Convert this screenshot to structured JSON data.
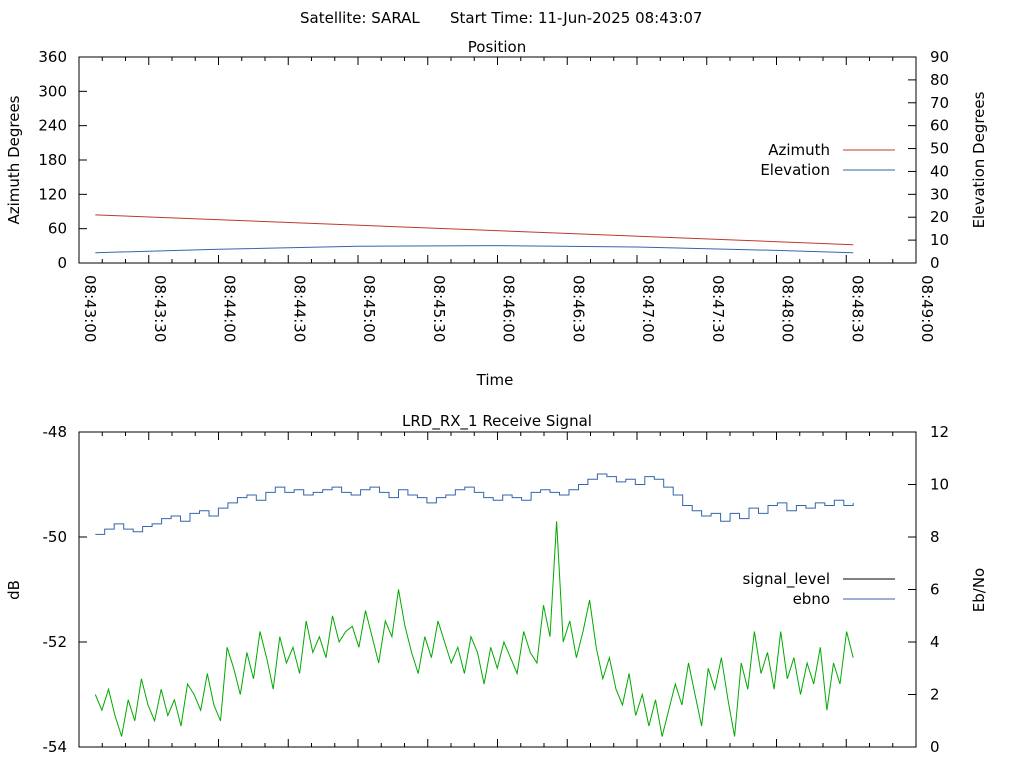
{
  "header": {
    "satellite_label": "Satellite: SARAL",
    "start_time_label": "Start Time: 11-Jun-2025 08:43:07"
  },
  "chart_data": [
    {
      "type": "line",
      "title": "Position",
      "xlabel": "Time",
      "ylabel": "Azimuth Degrees",
      "y2label": "Elevation Degrees",
      "x_ticks": [
        "08:43:00",
        "08:43:30",
        "08:44:00",
        "08:44:30",
        "08:45:00",
        "08:45:30",
        "08:46:00",
        "08:46:30",
        "08:47:00",
        "08:47:30",
        "08:48:00",
        "08:48:30",
        "08:49:00"
      ],
      "xlim": [
        "08:43:00",
        "08:49:00"
      ],
      "ylim": [
        0,
        360
      ],
      "y_ticks": [
        0,
        60,
        120,
        180,
        240,
        300,
        360
      ],
      "y2lim": [
        0,
        90
      ],
      "y2_ticks": [
        0,
        10,
        20,
        30,
        40,
        50,
        60,
        70,
        80,
        90
      ],
      "legend_position": "right",
      "series": [
        {
          "name": "Azimuth",
          "axis": "y",
          "color": "#c0392b",
          "x": [
            "08:43:07",
            "08:48:33"
          ],
          "values": [
            84,
            32
          ]
        },
        {
          "name": "Elevation",
          "axis": "y2",
          "color": "#3366aa",
          "x": [
            "08:43:07",
            "08:44:00",
            "08:45:00",
            "08:46:00",
            "08:47:00",
            "08:48:00",
            "08:48:33"
          ],
          "values": [
            4.5,
            6,
            7.3,
            7.6,
            7,
            5.5,
            4.5
          ]
        }
      ]
    },
    {
      "type": "line",
      "title": "LRD_RX_1 Receive Signal",
      "xlabel": "",
      "ylabel": "dB",
      "y2label": "Eb/No",
      "ylim": [
        -54,
        -48
      ],
      "y_ticks": [
        -54,
        -52,
        -50,
        -48
      ],
      "y2lim": [
        0,
        12
      ],
      "y2_ticks": [
        0,
        2,
        4,
        6,
        8,
        10,
        12
      ],
      "xlim": [
        "08:43:00",
        "08:49:00"
      ],
      "legend_position": "right",
      "series": [
        {
          "name": "signal_level",
          "axis": "y",
          "color": "#000000",
          "values": []
        },
        {
          "name": "ebno",
          "axis": "y2",
          "color": "#3366aa",
          "values": [
            8.1,
            8.3,
            8.5,
            8.3,
            8.2,
            8.4,
            8.5,
            8.7,
            8.8,
            8.6,
            8.9,
            9.0,
            8.8,
            9.1,
            9.3,
            9.5,
            9.6,
            9.4,
            9.7,
            9.9,
            9.7,
            9.8,
            9.6,
            9.7,
            9.8,
            9.9,
            9.7,
            9.6,
            9.8,
            9.9,
            9.7,
            9.5,
            9.8,
            9.6,
            9.5,
            9.3,
            9.5,
            9.6,
            9.8,
            9.9,
            9.7,
            9.5,
            9.4,
            9.6,
            9.5,
            9.4,
            9.7,
            9.8,
            9.7,
            9.6,
            9.8,
            10.0,
            10.2,
            10.4,
            10.3,
            10.1,
            10.2,
            10.0,
            10.3,
            10.2,
            9.9,
            9.6,
            9.2,
            9.0,
            8.8,
            8.9,
            8.6,
            8.9,
            8.7,
            9.1,
            8.9,
            9.2,
            9.3,
            9.0,
            9.2,
            9.1,
            9.3,
            9.2,
            9.4,
            9.2,
            9.3
          ]
        },
        {
          "name": "",
          "axis": "y",
          "color": "#00aa00",
          "values": [
            -53.0,
            -53.3,
            -52.9,
            -53.4,
            -53.8,
            -53.1,
            -53.5,
            -52.7,
            -53.2,
            -53.5,
            -52.9,
            -53.4,
            -53.1,
            -53.6,
            -52.8,
            -53.0,
            -53.3,
            -52.6,
            -53.2,
            -53.5,
            -52.1,
            -52.5,
            -53.0,
            -52.2,
            -52.7,
            -51.8,
            -52.3,
            -52.9,
            -51.9,
            -52.4,
            -52.1,
            -52.6,
            -51.6,
            -52.2,
            -51.9,
            -52.3,
            -51.5,
            -52.0,
            -51.8,
            -51.7,
            -52.1,
            -51.4,
            -51.9,
            -52.4,
            -51.6,
            -51.9,
            -51.0,
            -51.7,
            -52.2,
            -52.6,
            -51.9,
            -52.3,
            -51.6,
            -52.0,
            -52.4,
            -52.1,
            -52.6,
            -51.9,
            -52.2,
            -52.8,
            -52.1,
            -52.5,
            -52.0,
            -52.3,
            -52.6,
            -51.8,
            -52.2,
            -52.4,
            -51.3,
            -51.9,
            -49.7,
            -52.0,
            -51.6,
            -52.3,
            -51.8,
            -51.2,
            -52.1,
            -52.7,
            -52.3,
            -52.9,
            -53.2,
            -52.6,
            -53.4,
            -53.0,
            -53.6,
            -53.1,
            -53.8,
            -53.3,
            -52.8,
            -53.2,
            -52.4,
            -53.0,
            -53.6,
            -52.5,
            -52.9,
            -52.3,
            -53.1,
            -53.8,
            -52.4,
            -52.9,
            -51.8,
            -52.6,
            -52.2,
            -52.9,
            -51.8,
            -52.7,
            -52.3,
            -53.0,
            -52.4,
            -52.8,
            -52.1,
            -53.3,
            -52.4,
            -52.8,
            -51.8,
            -52.3
          ]
        }
      ]
    }
  ]
}
